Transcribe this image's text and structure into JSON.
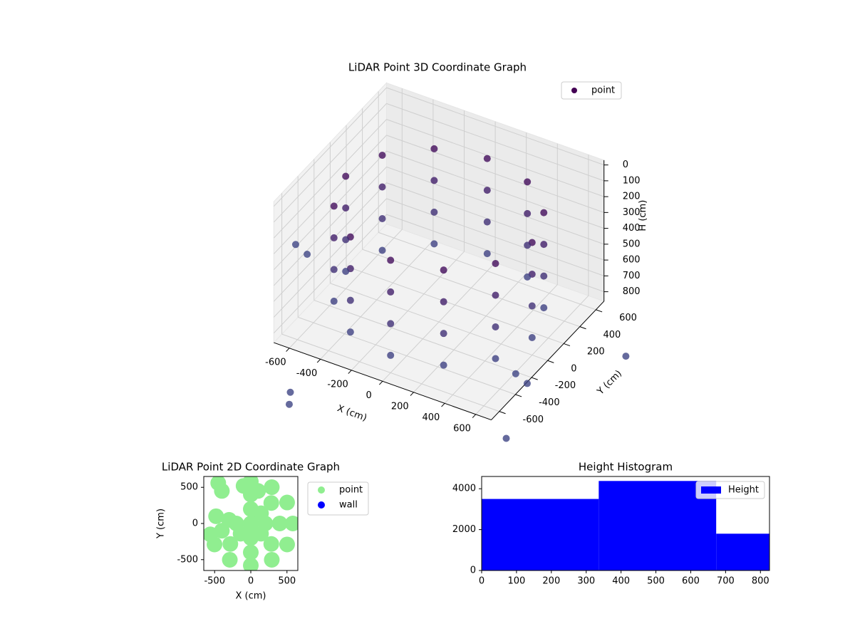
{
  "chart_data": [
    {
      "type": "scatter3d",
      "title": "LiDAR Point 3D Coordinate Graph",
      "xlabel": "X (cm)",
      "ylabel": "Y (cm)",
      "zlabel": "H (cm)",
      "xlim": [
        -700,
        700
      ],
      "ylim": [
        -700,
        700
      ],
      "zlim": [
        860,
        -30
      ],
      "xticks": [
        -600,
        -400,
        -200,
        0,
        200,
        400,
        600
      ],
      "yticks": [
        -600,
        -400,
        -200,
        0,
        200,
        400,
        600
      ],
      "zticks": [
        0,
        100,
        200,
        300,
        400,
        500,
        600,
        700,
        800
      ],
      "grid": true,
      "legend": "upper right",
      "colormap": [
        "#440154",
        "#3e4a89"
      ],
      "series": [
        {
          "name": "point",
          "color": "#440154",
          "x": [
            600,
            520,
            300,
            0,
            -300,
            -520,
            -600,
            -520,
            -300,
            0,
            300,
            520,
            600,
            520,
            300,
            0,
            -300,
            -520,
            -600,
            -520,
            -300,
            0,
            300,
            520,
            600,
            520,
            300,
            0,
            -300,
            -520,
            -600,
            -520,
            -300,
            0,
            300,
            520,
            600,
            520,
            300,
            0,
            -300,
            -520,
            -600,
            -520,
            -300,
            0,
            300,
            520,
            -350,
            -300,
            650,
            750,
            900,
            1100,
            -900,
            -1000
          ],
          "y": [
            0,
            300,
            520,
            600,
            520,
            300,
            0,
            -300,
            -520,
            -600,
            -520,
            -300,
            0,
            300,
            520,
            600,
            520,
            300,
            0,
            -300,
            -520,
            -600,
            -520,
            -300,
            0,
            300,
            520,
            600,
            520,
            300,
            0,
            -300,
            -520,
            -600,
            -520,
            -300,
            0,
            300,
            520,
            600,
            520,
            300,
            0,
            -300,
            -520,
            -600,
            -520,
            -300,
            -1170,
            -1280,
            -300,
            -350,
            -900,
            200,
            100,
            150
          ],
          "h": [
            150,
            150,
            150,
            150,
            150,
            150,
            150,
            150,
            150,
            150,
            150,
            150,
            350,
            350,
            350,
            350,
            350,
            350,
            350,
            350,
            350,
            350,
            350,
            350,
            550,
            550,
            550,
            550,
            550,
            550,
            550,
            550,
            550,
            550,
            550,
            550,
            750,
            750,
            750,
            750,
            750,
            750,
            750,
            750,
            750,
            750,
            750,
            750,
            800,
            800,
            800,
            800,
            800,
            800,
            800,
            800
          ]
        }
      ]
    },
    {
      "type": "scatter",
      "title": "LiDAR Point 2D Coordinate Graph",
      "xlabel": "X (cm)",
      "ylabel": "Y (cm)",
      "xlim": [
        -650,
        650
      ],
      "ylim": [
        -650,
        650
      ],
      "xticks": [
        -500,
        0,
        500
      ],
      "yticks": [
        -500,
        0,
        500
      ],
      "legend": "outside right",
      "series": [
        {
          "name": "point",
          "color": "#90ee90",
          "x": [
            580,
            502,
            290,
            0,
            -502,
            -290,
            0,
            290,
            502,
            400,
            283,
            0,
            -283,
            0,
            283,
            -400,
            200,
            0,
            -200,
            0,
            141,
            -141,
            141,
            0,
            -450,
            -400,
            -560,
            -480,
            -300,
            100,
            -100
          ],
          "y": [
            0,
            290,
            502,
            580,
            -290,
            -502,
            -580,
            -502,
            -290,
            0,
            283,
            400,
            -283,
            -400,
            -283,
            -100,
            0,
            200,
            0,
            -200,
            141,
            -141,
            -141,
            0,
            560,
            450,
            -150,
            100,
            50,
            450,
            520
          ]
        },
        {
          "name": "wall",
          "color": "#0000ff",
          "x": [],
          "y": []
        }
      ]
    },
    {
      "type": "histogram",
      "title": "Height Histogram",
      "bins": [
        0,
        336,
        673,
        826
      ],
      "counts": [
        3500,
        4380,
        1800
      ],
      "xlim": [
        0,
        826
      ],
      "ylim": [
        0,
        4600
      ],
      "xticks": [
        0,
        100,
        200,
        300,
        400,
        500,
        600,
        700,
        800
      ],
      "yticks": [
        0,
        2000,
        4000
      ],
      "legend": "upper right",
      "series_name": "Height",
      "color": "#0000ff"
    }
  ]
}
